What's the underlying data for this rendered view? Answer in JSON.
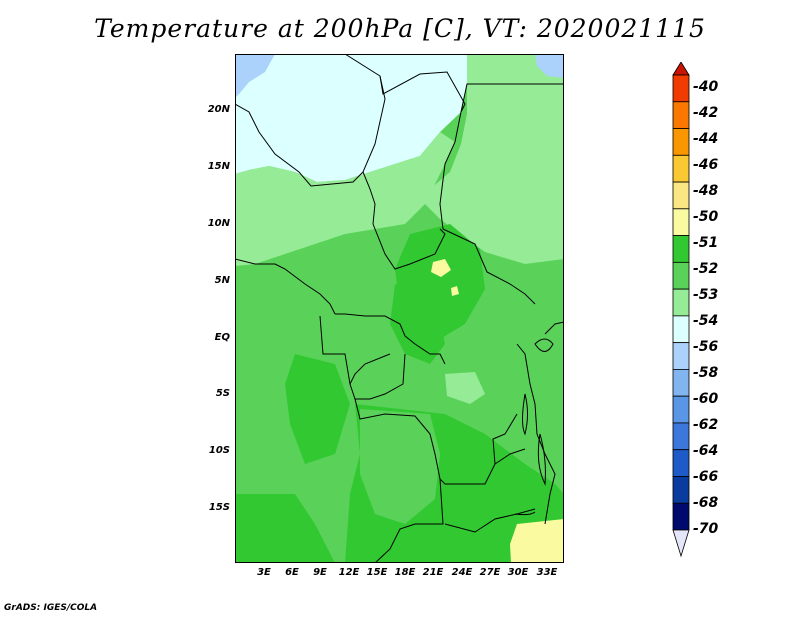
{
  "title": "Temperature at 200hPa [C], VT: 2020021115",
  "credit": "GrADS: IGES/COLA",
  "map": {
    "lat_labels": [
      "20N",
      "15N",
      "10N",
      "5N",
      "EQ",
      "5S",
      "10S",
      "15S"
    ],
    "lon_labels": [
      "3E",
      "6E",
      "9E",
      "12E",
      "15E",
      "18E",
      "21E",
      "24E",
      "27E",
      "30E",
      "33E"
    ]
  },
  "colorbar": {
    "labels": [
      "-40",
      "-42",
      "-44",
      "-46",
      "-48",
      "-50",
      "-51",
      "-52",
      "-53",
      "-54",
      "-56",
      "-58",
      "-60",
      "-62",
      "-64",
      "-66",
      "-68",
      "-70"
    ],
    "colors": [
      "#c81400",
      "#f03c00",
      "#fa7800",
      "#fa9600",
      "#fac832",
      "#fae682",
      "#fafaa0",
      "#32c832",
      "#5ad25a",
      "#96eb96",
      "#dcffff",
      "#aad2fa",
      "#82b4f0",
      "#5a96e6",
      "#3c78dc",
      "#1e5ac8",
      "#0a3ca0",
      "#000a6e"
    ],
    "top_triangle_color": "#c81400",
    "bottom_triangle_color": "#e6e6fa"
  }
}
